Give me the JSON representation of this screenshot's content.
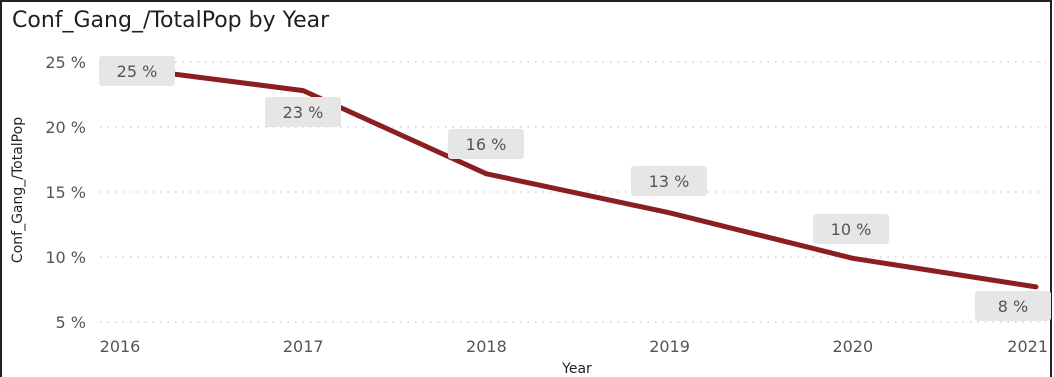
{
  "chart_data": {
    "type": "line",
    "title": "Conf_Gang_/TotalPop by Year",
    "xlabel": "Year",
    "ylabel": "Conf_Gang_/TotalPop",
    "categories": [
      "2016",
      "2017",
      "2018",
      "2019",
      "2020",
      "2021"
    ],
    "series": [
      {
        "values": [
          24.6,
          22.8,
          16.4,
          13.4,
          9.9,
          7.7
        ],
        "data_labels": [
          "25 %",
          "23 %",
          "16 %",
          "13 %",
          "10 %",
          "8 %"
        ]
      }
    ],
    "yticks": [
      {
        "value": 25,
        "label": "25 %"
      },
      {
        "value": 20,
        "label": "20 %"
      },
      {
        "value": 15,
        "label": "15 %"
      },
      {
        "value": 10,
        "label": "10 %"
      },
      {
        "value": 5,
        "label": "5 %"
      }
    ],
    "ylim": [
      5,
      25
    ],
    "grid": true,
    "line_color": "#8B1F1F",
    "label_bg_color": "#E6E6E6"
  }
}
